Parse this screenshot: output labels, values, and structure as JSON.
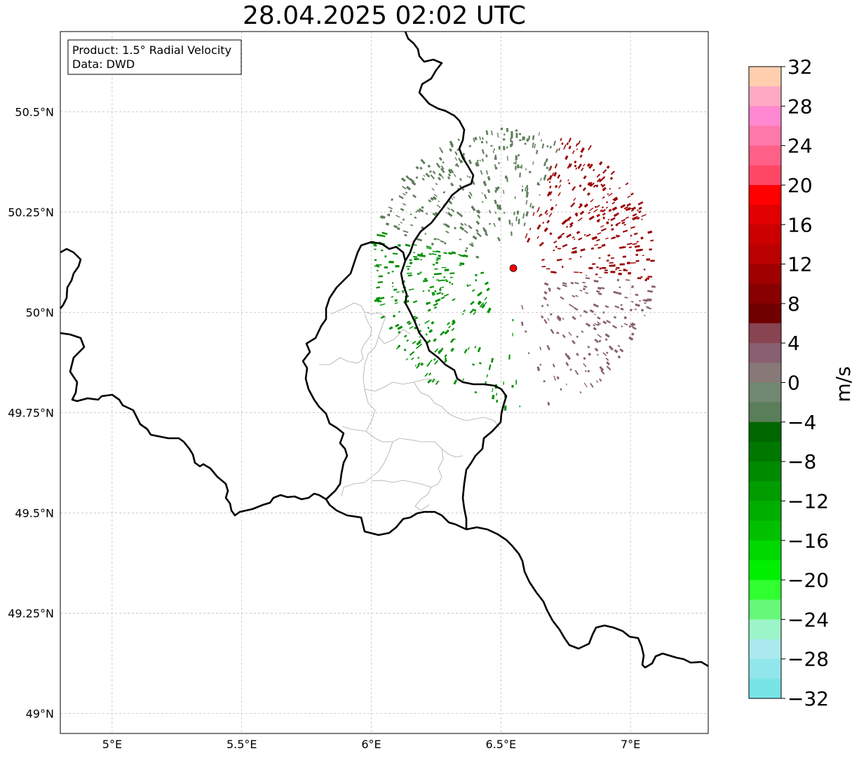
{
  "title": "28.04.2025 02:02 UTC",
  "info_box": {
    "line1": "Product: 1.5° Radial Velocity",
    "line2": "Data: DWD"
  },
  "map": {
    "lon_range": [
      4.8,
      7.3
    ],
    "lat_range": [
      48.95,
      50.7
    ],
    "lon_ticks": [
      {
        "value": 5.0,
        "label": "5°E"
      },
      {
        "value": 5.5,
        "label": "5.5°E"
      },
      {
        "value": 6.0,
        "label": "6°E"
      },
      {
        "value": 6.5,
        "label": "6.5°E"
      },
      {
        "value": 7.0,
        "label": "7°E"
      }
    ],
    "lat_ticks": [
      {
        "value": 49.0,
        "label": "49°N"
      },
      {
        "value": 49.25,
        "label": "49.25°N"
      },
      {
        "value": 49.5,
        "label": "49.5°N"
      },
      {
        "value": 49.75,
        "label": "49.75°N"
      },
      {
        "value": 50.0,
        "label": "50°N"
      },
      {
        "value": 50.25,
        "label": "50.25°N"
      },
      {
        "value": 50.5,
        "label": "50.5°N"
      }
    ],
    "radar_site": {
      "lon": 6.548,
      "lat": 50.11,
      "color": "#ff0000"
    },
    "border_color": "#000000",
    "region_border_color": "#aaaaaa"
  },
  "colorbar": {
    "unit_label": "m/s",
    "min": -32,
    "max": 32,
    "tick_labels": [
      "32",
      "28",
      "24",
      "20",
      "16",
      "12",
      "8",
      "4",
      "0",
      "−4",
      "−8",
      "−12",
      "−16",
      "−20",
      "−24",
      "−28",
      "−32"
    ],
    "colors_top_to_bottom": [
      "#ffcfb0",
      "#ffaac4",
      "#ff88d0",
      "#ff78aa",
      "#ff6088",
      "#ff4866",
      "#ff0000",
      "#e00000",
      "#cc0000",
      "#bb0000",
      "#a00000",
      "#880000",
      "#700000",
      "#884450",
      "#886070",
      "#887878",
      "#708870",
      "#5a7e5a",
      "#006600",
      "#007800",
      "#008a00",
      "#009c00",
      "#00ae00",
      "#00c000",
      "#00d800",
      "#00f000",
      "#30ff30",
      "#66f878",
      "#9cf5c8",
      "#aaeaee",
      "#90e6ea",
      "#78e4e6"
    ]
  },
  "velocity_regions": [
    {
      "name": "inbound-northwest",
      "color": "#5e7e5a"
    },
    {
      "name": "inbound-southwest",
      "color": "#009000"
    },
    {
      "name": "outbound-northeast",
      "color": "#990000"
    },
    {
      "name": "outbound-southeast",
      "color": "#886070"
    }
  ]
}
